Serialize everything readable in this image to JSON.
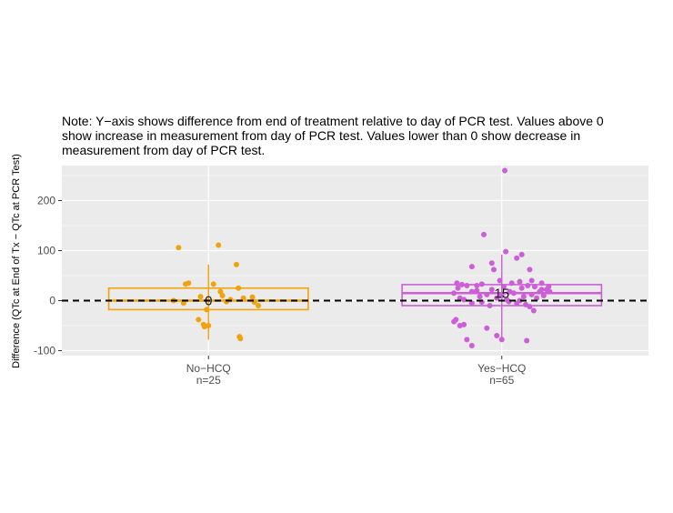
{
  "note": {
    "line1": "Note: Y−axis shows difference from end of treatment relative to day of PCR test. Values above 0",
    "line2": "show increase in measurement from day of PCR test. Values lower than 0 show decrease in",
    "line3": "measurement from day of PCR test."
  },
  "chart_data": {
    "type": "scatter",
    "subtype": "jittered points with box (boxplot-style) per group",
    "ylabel": "Difference (QTc at End of Tx − QTc at PCR Test)",
    "xlabel": "",
    "ylim": [
      -110,
      270
    ],
    "yticks": [
      -100,
      0,
      100,
      200
    ],
    "reference_line": {
      "y": 0,
      "style": "dashed"
    },
    "grid": true,
    "categories": [
      "No−HCQ",
      "Yes−HCQ"
    ],
    "category_counts": [
      "n=25",
      "n=65"
    ],
    "groups": [
      {
        "category": "No−HCQ",
        "count_label": "n=25",
        "color": "#f0a30a",
        "median": 0,
        "median_label": "0",
        "q1": -18,
        "q3": 25,
        "whisker_low": -78,
        "whisker_high": 72,
        "points": [
          [
            -0.3,
            106
          ],
          [
            0.1,
            111
          ],
          [
            -0.23,
            33
          ],
          [
            -0.2,
            35
          ],
          [
            0.28,
            72
          ],
          [
            0.3,
            25
          ],
          [
            -0.25,
            -5
          ],
          [
            -0.08,
            8
          ],
          [
            0.05,
            33
          ],
          [
            0.12,
            18
          ],
          [
            0.14,
            10
          ],
          [
            0.22,
            2
          ],
          [
            0.44,
            7
          ],
          [
            0.46,
            -3
          ],
          [
            0.5,
            -10
          ],
          [
            -0.1,
            -38
          ],
          [
            -0.05,
            -48
          ],
          [
            -0.04,
            -52
          ],
          [
            0.0,
            -50
          ],
          [
            -0.02,
            -18
          ],
          [
            0.31,
            -72
          ],
          [
            0.32,
            -76
          ],
          [
            0.18,
            -2
          ],
          [
            -0.35,
            0
          ],
          [
            0.35,
            5
          ]
        ]
      },
      {
        "category": "Yes−HCQ",
        "count_label": "n=65",
        "color": "#cc5ed8",
        "median": 15,
        "median_label": "15",
        "q1": -10,
        "q3": 32,
        "whisker_low": -75,
        "whisker_high": 92,
        "points": [
          [
            0.03,
            260
          ],
          [
            -0.18,
            132
          ],
          [
            0.2,
            92
          ],
          [
            0.04,
            98
          ],
          [
            -0.3,
            68
          ],
          [
            -0.08,
            62
          ],
          [
            0.28,
            62
          ],
          [
            0.15,
            85
          ],
          [
            -0.1,
            75
          ],
          [
            -0.45,
            35
          ],
          [
            -0.4,
            32
          ],
          [
            -0.35,
            30
          ],
          [
            -0.25,
            30
          ],
          [
            -0.2,
            33
          ],
          [
            0.1,
            35
          ],
          [
            0.18,
            38
          ],
          [
            0.3,
            40
          ],
          [
            0.4,
            22
          ],
          [
            0.45,
            22
          ],
          [
            0.48,
            18
          ],
          [
            0.38,
            18
          ],
          [
            -0.48,
            15
          ],
          [
            -0.3,
            18
          ],
          [
            -0.15,
            12
          ],
          [
            0.0,
            10
          ],
          [
            0.08,
            18
          ],
          [
            0.22,
            8
          ],
          [
            0.35,
            5
          ],
          [
            -0.42,
            5
          ],
          [
            -0.38,
            2
          ],
          [
            -0.05,
            5
          ],
          [
            0.05,
            2
          ],
          [
            -0.3,
            -5
          ],
          [
            -0.2,
            -3
          ],
          [
            0.15,
            -5
          ],
          [
            0.24,
            -8
          ],
          [
            0.28,
            -12
          ],
          [
            0.32,
            -20
          ],
          [
            -0.46,
            -38
          ],
          [
            -0.48,
            -42
          ],
          [
            -0.42,
            -50
          ],
          [
            -0.38,
            -48
          ],
          [
            -0.35,
            -78
          ],
          [
            -0.3,
            -90
          ],
          [
            -0.15,
            -55
          ],
          [
            -0.05,
            -70
          ],
          [
            0.0,
            -78
          ],
          [
            0.25,
            -80
          ],
          [
            0.4,
            35
          ],
          [
            0.42,
            10
          ],
          [
            -0.25,
            20
          ],
          [
            0.12,
            15
          ],
          [
            0.02,
            28
          ],
          [
            -0.1,
            22
          ],
          [
            0.2,
            25
          ],
          [
            0.33,
            28
          ],
          [
            -0.02,
            40
          ],
          [
            0.07,
            -2
          ],
          [
            -0.12,
            -10
          ],
          [
            0.18,
            0
          ],
          [
            0.3,
            12
          ],
          [
            -0.44,
            25
          ],
          [
            0.26,
            30
          ],
          [
            0.47,
            28
          ],
          [
            -0.22,
            8
          ]
        ]
      }
    ]
  }
}
